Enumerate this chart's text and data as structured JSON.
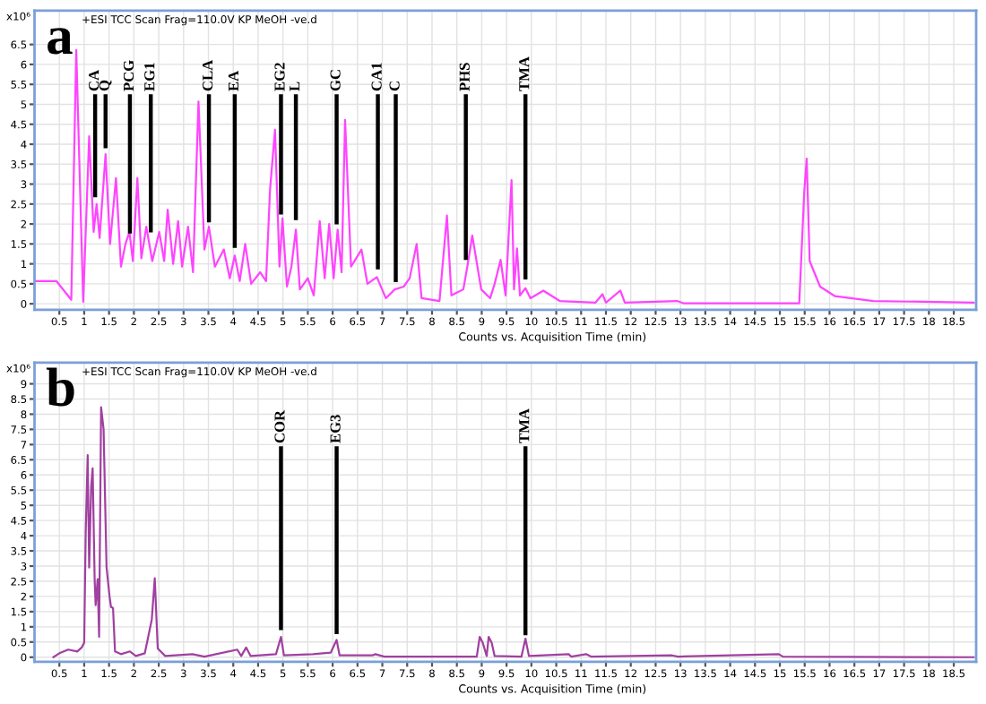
{
  "chart_data": [
    {
      "type": "line",
      "title": "+ESI TCC Scan Frag=110.0V KP MeOH -ve.d",
      "xlabel": "Counts vs. Acquisition Time (min)",
      "ylabel": "x10⁶",
      "grid": true,
      "xlim": [
        0,
        18.95
      ],
      "ylim": [
        -0.15,
        7.35
      ],
      "xticks": [
        0.5,
        1,
        1.5,
        2,
        2.5,
        3,
        3.5,
        4,
        4.5,
        5,
        5.5,
        6,
        6.5,
        7,
        7.5,
        8,
        8.5,
        9,
        9.5,
        10,
        10.5,
        11,
        11.5,
        12,
        12.5,
        13,
        13.5,
        14,
        14.5,
        15,
        15.5,
        16,
        16.5,
        17,
        17.5,
        18,
        18.5
      ],
      "yticks": [
        0,
        0.5,
        1,
        1.5,
        2,
        2.5,
        3,
        3.5,
        4,
        4.5,
        5,
        5.5,
        6,
        6.5
      ],
      "annotations": [
        "a",
        {
          "text": "CA",
          "x": 1.22,
          "y": 2.67
        },
        {
          "text": "Q",
          "x": 1.43,
          "y": 3.9
        },
        {
          "text": "PCG",
          "x": 1.92,
          "y": 1.76
        },
        {
          "text": "EG1",
          "x": 2.34,
          "y": 1.79
        },
        {
          "text": "CLA",
          "x": 3.51,
          "y": 2.04
        },
        {
          "text": "EA",
          "x": 4.03,
          "y": 1.4
        },
        {
          "text": "EG2",
          "x": 4.96,
          "y": 2.24
        },
        {
          "text": "L",
          "x": 5.26,
          "y": 2.1
        },
        {
          "text": "GC",
          "x": 6.08,
          "y": 1.99
        },
        {
          "text": "CA1",
          "x": 6.91,
          "y": 0.86
        },
        {
          "text": "C",
          "x": 7.27,
          "y": 0.54
        },
        {
          "text": "PHS",
          "x": 8.68,
          "y": 1.1
        },
        {
          "text": "TMA",
          "x": 9.88,
          "y": 0.61
        }
      ],
      "series": [
        {
          "color": "#ff44ff",
          "x": [
            0.0,
            0.44,
            0.74,
            0.84,
            0.98,
            1.1,
            1.19,
            1.25,
            1.31,
            1.43,
            1.52,
            1.64,
            1.74,
            1.83,
            1.91,
            1.98,
            2.07,
            2.15,
            2.25,
            2.37,
            2.51,
            2.61,
            2.68,
            2.79,
            2.89,
            2.97,
            3.09,
            3.19,
            3.3,
            3.42,
            3.51,
            3.63,
            3.81,
            3.93,
            4.03,
            4.13,
            4.24,
            4.36,
            4.54,
            4.66,
            4.74,
            4.84,
            4.93,
            4.99,
            5.08,
            5.17,
            5.26,
            5.34,
            5.5,
            5.62,
            5.74,
            5.84,
            5.93,
            6.02,
            6.1,
            6.18,
            6.25,
            6.37,
            6.58,
            6.7,
            6.89,
            7.07,
            7.25,
            7.43,
            7.55,
            7.69,
            7.79,
            8.15,
            8.3,
            8.39,
            8.63,
            8.71,
            8.81,
            8.99,
            9.17,
            9.26,
            9.38,
            9.48,
            9.6,
            9.65,
            9.71,
            9.77,
            9.88,
            9.98,
            10.24,
            10.57,
            11.29,
            11.43,
            11.5,
            11.79,
            11.88,
            12.93,
            13.07,
            15.39,
            15.49,
            15.54,
            15.6,
            15.81,
            16.11,
            16.88,
            18.9
          ],
          "values": [
            0.57,
            0.57,
            0.1,
            6.36,
            0.05,
            4.2,
            1.8,
            2.5,
            1.65,
            3.75,
            1.5,
            3.15,
            0.93,
            1.5,
            1.8,
            1.07,
            3.15,
            1.14,
            1.93,
            1.07,
            1.8,
            1.07,
            2.36,
            1.0,
            2.07,
            0.93,
            1.93,
            0.79,
            5.07,
            1.36,
            1.93,
            0.93,
            1.36,
            0.64,
            1.21,
            0.57,
            1.5,
            0.5,
            0.79,
            0.57,
            2.86,
            4.36,
            0.93,
            2.14,
            0.43,
            0.93,
            1.86,
            0.36,
            0.64,
            0.21,
            2.07,
            0.64,
            2.0,
            0.64,
            1.86,
            0.79,
            4.61,
            0.93,
            1.36,
            0.5,
            0.67,
            0.14,
            0.36,
            0.43,
            0.64,
            1.5,
            0.14,
            0.07,
            2.21,
            0.21,
            0.36,
            0.93,
            1.71,
            0.36,
            0.14,
            0.5,
            1.1,
            0.21,
            3.1,
            0.36,
            1.39,
            0.21,
            0.39,
            0.14,
            0.33,
            0.07,
            0.03,
            0.24,
            0.03,
            0.33,
            0.03,
            0.07,
            0.01,
            0.01,
            2.79,
            3.64,
            1.07,
            0.43,
            0.19,
            0.07,
            0.03
          ]
        }
      ]
    },
    {
      "type": "line",
      "title": "+ESI TCC Scan Frag=110.0V KP MeOH -ve.d",
      "xlabel": "Counts vs. Acquisition Time (min)",
      "ylabel": "x10⁶",
      "grid": true,
      "xlim": [
        0,
        18.95
      ],
      "ylim": [
        -0.15,
        9.7
      ],
      "xticks": [
        0.5,
        1,
        1.5,
        2,
        2.5,
        3,
        3.5,
        4,
        4.5,
        5,
        5.5,
        6,
        6.5,
        7,
        7.5,
        8,
        8.5,
        9,
        9.5,
        10,
        10.5,
        11,
        11.5,
        12,
        12.5,
        13,
        13.5,
        14,
        14.5,
        15,
        15.5,
        16,
        16.5,
        17,
        17.5,
        18,
        18.5
      ],
      "yticks": [
        0,
        0.5,
        1,
        1.5,
        2,
        2.5,
        3,
        3.5,
        4,
        4.5,
        5,
        5.5,
        6,
        6.5,
        7,
        7.5,
        8,
        8.5,
        9
      ],
      "annotations": [
        "b",
        {
          "text": "COR",
          "x": 4.96,
          "y": 0.89
        },
        {
          "text": "EG3",
          "x": 6.08,
          "y": 0.76
        },
        {
          "text": "TMA",
          "x": 9.88,
          "y": 0.72
        }
      ],
      "series": [
        {
          "color": "#a040a0",
          "x": [
            0.38,
            0.5,
            0.68,
            0.86,
            0.95,
            1.0,
            1.03,
            1.07,
            1.1,
            1.14,
            1.17,
            1.21,
            1.23,
            1.27,
            1.3,
            1.34,
            1.39,
            1.45,
            1.51,
            1.54,
            1.58,
            1.62,
            1.74,
            1.92,
            2.04,
            2.22,
            2.36,
            2.42,
            2.48,
            2.63,
            3.18,
            3.42,
            4.08,
            4.16,
            4.26,
            4.35,
            4.86,
            4.96,
            5.02,
            5.6,
            5.96,
            6.08,
            6.14,
            6.8,
            6.86,
            7.04,
            8.9,
            8.96,
            9.02,
            9.1,
            9.14,
            9.2,
            9.26,
            9.8,
            9.88,
            9.95,
            10.75,
            10.8,
            11.1,
            11.2,
            12.83,
            12.95,
            14.98,
            15.06,
            18.9
          ],
          "values": [
            0,
            0.13,
            0.25,
            0.19,
            0.32,
            0.48,
            4.09,
            6.65,
            2.95,
            5.61,
            6.22,
            2.57,
            1.71,
            2.57,
            0.67,
            8.23,
            7.51,
            2.95,
            2.0,
            1.65,
            1.62,
            0.19,
            0.1,
            0.19,
            0.04,
            0.13,
            1.24,
            2.6,
            0.29,
            0.04,
            0.1,
            0.02,
            0.25,
            0.04,
            0.32,
            0.04,
            0.1,
            0.67,
            0.06,
            0.1,
            0.15,
            0.57,
            0.06,
            0.06,
            0.1,
            0.02,
            0.02,
            0.67,
            0.48,
            0.04,
            0.67,
            0.48,
            0.04,
            0.02,
            0.61,
            0.04,
            0.1,
            0.02,
            0.1,
            0.02,
            0.06,
            0.02,
            0.1,
            0.02,
            0
          ]
        }
      ]
    }
  ]
}
